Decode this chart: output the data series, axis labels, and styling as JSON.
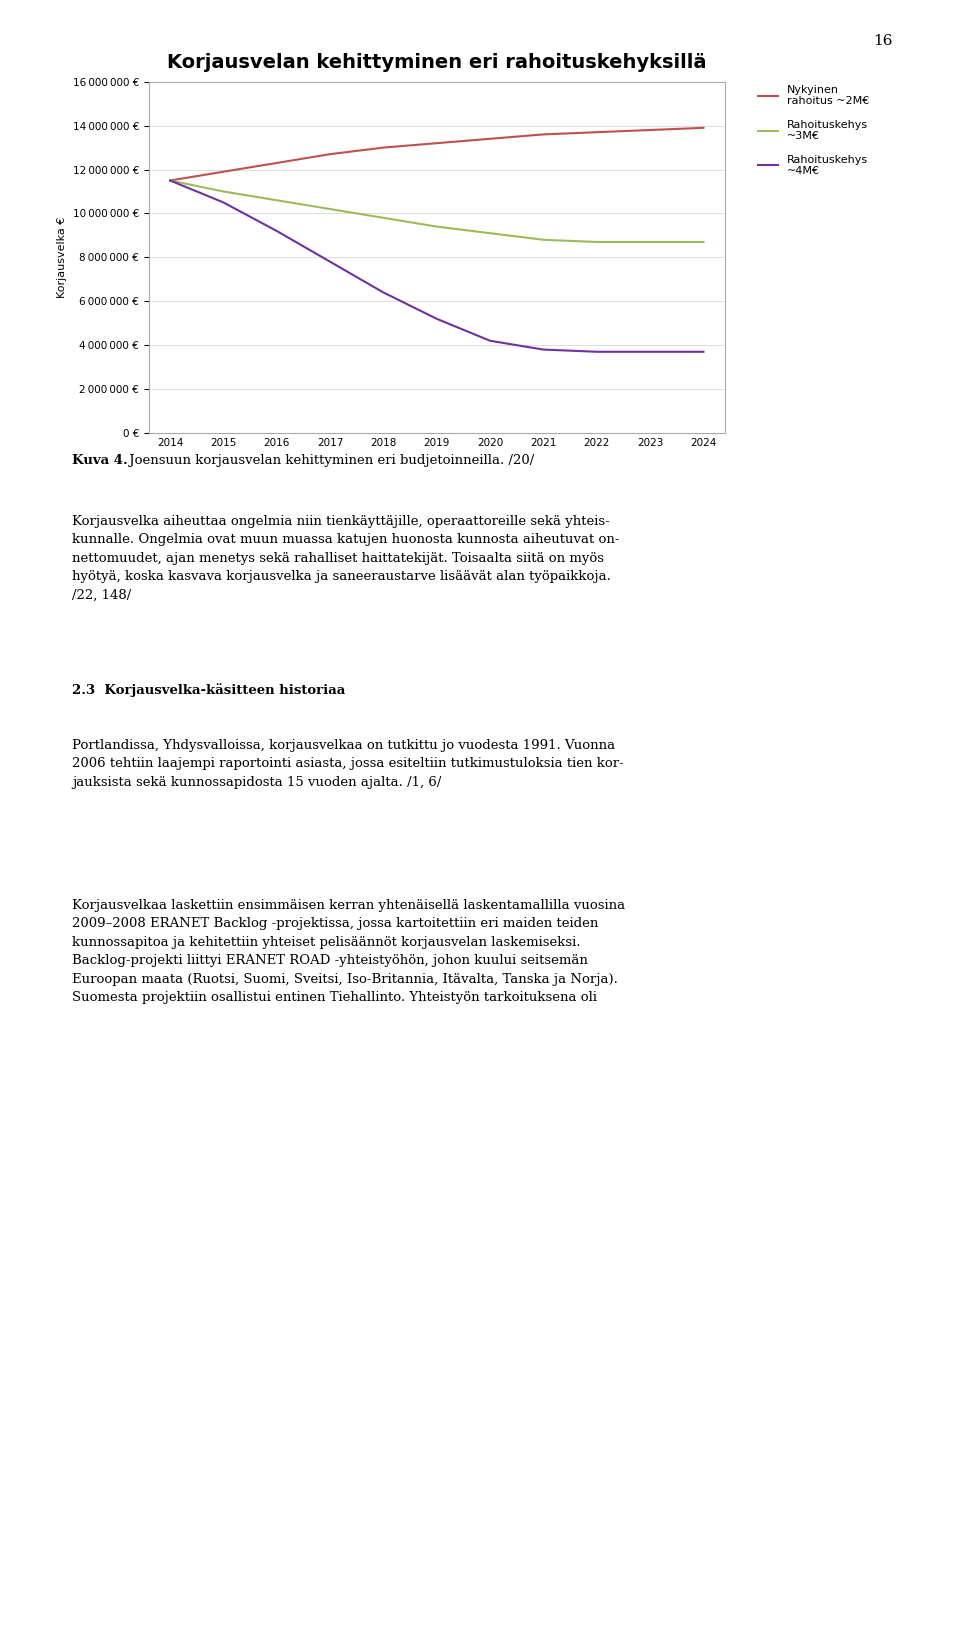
{
  "title": "Korjausvelan kehittyminen eri rahoituskehyksillä",
  "ylabel": "Korjausvelka €",
  "page_number": "16",
  "years": [
    2014,
    2015,
    2016,
    2017,
    2018,
    2019,
    2020,
    2021,
    2022,
    2023,
    2024
  ],
  "series": [
    {
      "label": "Nykyinen\nrahoitus ~2M€",
      "color": "#c0504d",
      "values": [
        11500000,
        11900000,
        12300000,
        12700000,
        13000000,
        13200000,
        13400000,
        13600000,
        13700000,
        13800000,
        13900000
      ]
    },
    {
      "label": "Rahoituskehys\n~3M€",
      "color": "#9bbb59",
      "values": [
        11500000,
        11000000,
        10600000,
        10200000,
        9800000,
        9400000,
        9100000,
        8800000,
        8700000,
        8700000,
        8700000
      ]
    },
    {
      "label": "Rahoituskehys\n~4M€",
      "color": "#7030a0",
      "values": [
        11500000,
        10500000,
        9200000,
        7800000,
        6400000,
        5200000,
        4200000,
        3800000,
        3700000,
        3700000,
        3700000
      ]
    }
  ],
  "ylim": [
    0,
    16000000
  ],
  "yticks": [
    0,
    2000000,
    4000000,
    6000000,
    8000000,
    10000000,
    12000000,
    14000000,
    16000000
  ],
  "chart_bg": "#ffffff",
  "page_bg": "#ffffff",
  "chart_border_color": "#aaaaaa",
  "grid_color": "#d8d8d8",
  "title_fontsize": 14,
  "axis_fontsize": 7.5,
  "legend_fontsize": 8,
  "caption_bold": "Kuva 4.",
  "caption_normal": " Joensuun korjausvelan kehittyminen eri budjetoinneilla. /20/",
  "para1": "Korjausvelka aiheuttaa ongelmia niin tienkäyttäjille, operaattoreille sekä yhteis-\nkunnalle. Ongelmia ovat muun muassa katujen huonosta kunnosta aiheutuvat on-\nnettomuudet, ajan menetys sekä rahalliset haittatekijät. Toisaalta siitä on myös\nhyötyä, koska kasvava korjausvelka ja saneeraustarve lisäävät alan työpaikkoja.\n/22, 148/",
  "heading": "2.3  Korjausvelka-käsitteen historiaa",
  "para2": "Portlandissa, Yhdysvalloissa, korjausvelkaa on tutkittu jo vuodesta 1991. Vuonna\n2006 tehtiin laajempi raportointi asiasta, jossa esiteltiin tutkimustuloksia tien kor-\njauksista sekä kunnossapidosta 15 vuoden ajalta. /1, 6/",
  "para3": "Korjausvelkaa laskettiin ensimmäisen kerran yhtenäisellä laskentamallilla vuosina\n2009–2008 ERANET Backlog -projektissa, jossa kartoitettiin eri maiden teiden\nkunnossapitoa ja kehitettiin yhteiset pelisäännöt korjausvelan laskemiseksi.\nBacklog-projekti liittyi ERANET ROAD -yhteistyöhön, johon kuului seitsemän\nEuroopan maata (Ruotsi, Suomi, Sveitsi, Iso-Britannia, Itävalta, Tanska ja Norja).\nSuomesta projektiin osallistui entinen Tiehallinto. Yhteistyön tarkoituksena oli"
}
